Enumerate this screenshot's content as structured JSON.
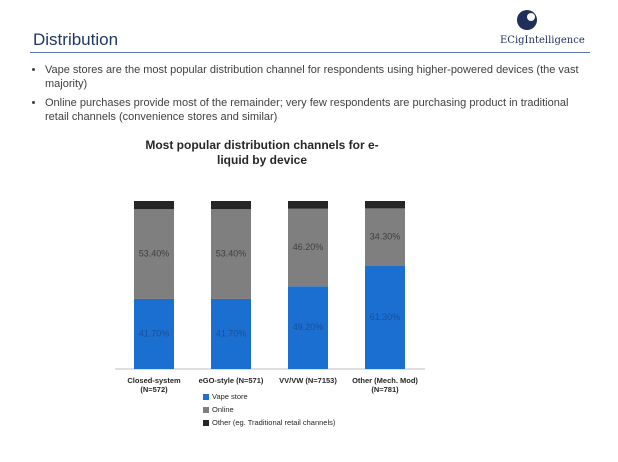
{
  "header": {
    "title": "Distribution",
    "logo": "ECigIntelligence"
  },
  "bullets": [
    "Vape stores are the most popular distribution channel for respondents using higher-powered devices (the vast majority)",
    "Online purchases provide most of the remainder; very few respondents are purchasing product in traditional retail channels (convenience stores and similar)"
  ],
  "chart_data": {
    "type": "stacked_bar",
    "title": "Most popular distribution channels for e-\nliquid by device",
    "categories": [
      "Closed-system\n(N=572)",
      "eGO-style (N=571)",
      "VV/VW (N=7153)",
      "Other (Mech. Mod)\n(N=781)"
    ],
    "ylim": [
      0,
      100
    ],
    "series": [
      {
        "name": "Vape store",
        "color": "#1a6fd1",
        "values": [
          41.7,
          41.7,
          49.2,
          61.3
        ],
        "value_labels": [
          "41.70%",
          "41.70%",
          "49.20%",
          "61.30%"
        ]
      },
      {
        "name": "Online",
        "color": "#7f7f7f",
        "values": [
          53.4,
          53.4,
          46.2,
          34.3
        ],
        "value_labels": [
          "53.40%",
          "53.40%",
          "46.20%",
          "34.30%"
        ]
      },
      {
        "name": "Other (eg. Traditional retail channels)",
        "color": "#262626",
        "values": [
          4.9,
          4.9,
          4.6,
          4.4
        ]
      }
    ]
  }
}
